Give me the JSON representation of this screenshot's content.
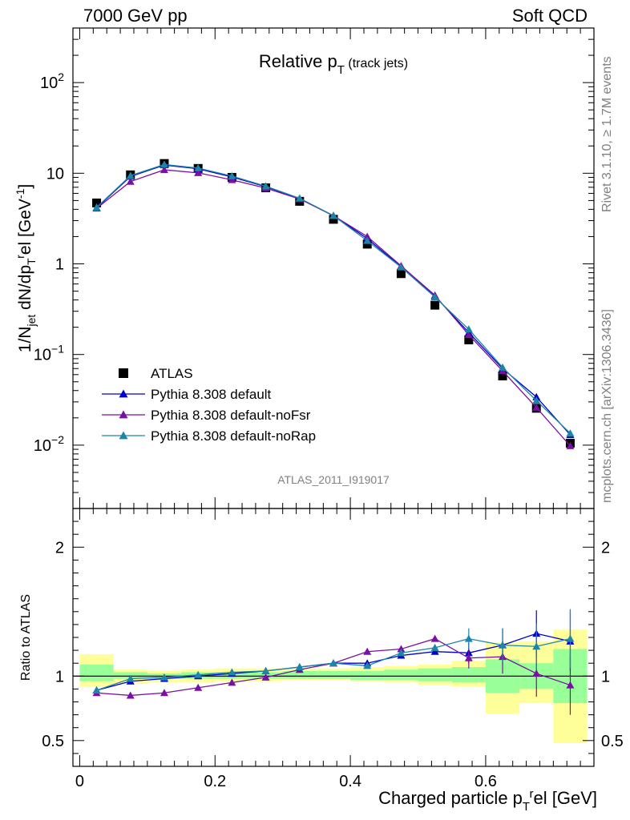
{
  "header": {
    "left": "7000 GeV pp",
    "right": "Soft QCD"
  },
  "side": {
    "rivet": "Rivet 3.1.10, ≥ 1.7M events",
    "mcplots": "mcplots.cern.ch [arXiv:1306.3436]"
  },
  "chart_data": [
    {
      "type": "line",
      "title": "Relative p_T (track jets)",
      "ylabel": "1/N_jet dN/dp_T^rel [GeV^-1]",
      "yscale": "log",
      "ylim": [
        0.002,
        400
      ],
      "xlim": [
        -0.01,
        0.76
      ],
      "yticklabels": [
        "10^-2",
        "10^-1",
        "1",
        "10",
        "10^2"
      ],
      "ref_label": "ATLAS_2011_I919017",
      "legend_position": "bottom-left",
      "x": [
        0.025,
        0.075,
        0.125,
        0.175,
        0.225,
        0.275,
        0.325,
        0.375,
        0.425,
        0.475,
        0.525,
        0.575,
        0.625,
        0.675,
        0.725
      ],
      "series": [
        {
          "name": "ATLAS",
          "color": "#000000",
          "marker": "square",
          "values": [
            4.7,
            9.6,
            12.8,
            11.3,
            9.0,
            6.9,
            4.9,
            3.1,
            1.65,
            0.78,
            0.35,
            0.145,
            0.058,
            0.0255,
            0.0105
          ]
        },
        {
          "name": "Pythia 8.308 default",
          "color": "#0000cc",
          "marker": "triangle",
          "values": [
            4.15,
            9.2,
            12.3,
            11.2,
            9.1,
            7.1,
            5.25,
            3.4,
            1.9,
            0.93,
            0.44,
            0.175,
            0.07,
            0.034,
            0.013
          ]
        },
        {
          "name": "Pythia 8.308 default-noFsr",
          "color": "#7a0fa3",
          "marker": "triangle",
          "values": [
            4.1,
            8.1,
            10.9,
            10.1,
            8.45,
            6.85,
            5.2,
            3.4,
            2.0,
            0.95,
            0.45,
            0.165,
            0.066,
            0.026,
            0.0098
          ]
        },
        {
          "name": "Pythia 8.308 default-noRap",
          "color": "#1c86a8",
          "marker": "triangle",
          "values": [
            4.2,
            9.4,
            12.5,
            11.4,
            9.3,
            7.2,
            5.3,
            3.4,
            1.8,
            0.92,
            0.43,
            0.19,
            0.072,
            0.031,
            0.0135
          ]
        }
      ]
    },
    {
      "type": "line",
      "ylabel": "Ratio to ATLAS",
      "xlabel": "Charged particle p_T^rel [GeV]",
      "ylim": [
        0.3,
        2.3
      ],
      "xlim": [
        -0.01,
        0.76
      ],
      "xticklabels": [
        "0",
        "0.2",
        "0.4",
        "0.6"
      ],
      "yticklabels": [
        "0.5",
        "1",
        "2"
      ],
      "bands": {
        "yellow_edges": [
          [
            0.0,
            0.05
          ],
          [
            0.05,
            0.1
          ],
          [
            0.1,
            0.15
          ],
          [
            0.15,
            0.2
          ],
          [
            0.2,
            0.25
          ],
          [
            0.25,
            0.3
          ],
          [
            0.3,
            0.35
          ],
          [
            0.35,
            0.4
          ],
          [
            0.4,
            0.45
          ],
          [
            0.45,
            0.5
          ],
          [
            0.5,
            0.55
          ],
          [
            0.55,
            0.6
          ],
          [
            0.6,
            0.65
          ],
          [
            0.65,
            0.7
          ],
          [
            0.7,
            0.75
          ]
        ],
        "yellow_lo": [
          0.92,
          0.94,
          0.95,
          0.95,
          0.96,
          0.96,
          0.97,
          0.97,
          0.96,
          0.95,
          0.93,
          0.92,
          0.71,
          0.79,
          0.48
        ],
        "yellow_hi": [
          1.17,
          1.05,
          1.04,
          1.05,
          1.06,
          1.06,
          1.06,
          1.06,
          1.07,
          1.08,
          1.09,
          1.12,
          1.26,
          1.27,
          1.36
        ],
        "green_lo": [
          0.96,
          0.98,
          0.98,
          0.98,
          0.98,
          0.98,
          0.98,
          0.98,
          0.97,
          0.97,
          0.96,
          0.95,
          0.87,
          0.9,
          0.79
        ],
        "green_hi": [
          1.09,
          1.03,
          1.02,
          1.03,
          1.03,
          1.03,
          1.04,
          1.04,
          1.04,
          1.05,
          1.06,
          1.07,
          1.13,
          1.1,
          1.21
        ]
      },
      "x": [
        0.025,
        0.075,
        0.125,
        0.175,
        0.225,
        0.275,
        0.325,
        0.375,
        0.425,
        0.475,
        0.525,
        0.575,
        0.625,
        0.675,
        0.725
      ],
      "series": [
        {
          "name": "Pythia 8.308 default",
          "color": "#0000cc",
          "values": [
            0.89,
            0.96,
            0.98,
            1.0,
            1.02,
            1.04,
            1.07,
            1.1,
            1.1,
            1.16,
            1.19,
            1.18,
            1.24,
            1.33,
            1.27
          ]
        },
        {
          "name": "Pythia 8.308 default-noFsr",
          "color": "#7a0fa3",
          "values": [
            0.87,
            0.85,
            0.87,
            0.91,
            0.95,
            0.99,
            1.05,
            1.1,
            1.19,
            1.21,
            1.29,
            1.14,
            1.15,
            1.02,
            0.93
          ]
        },
        {
          "name": "Pythia 8.308 default-noRap",
          "color": "#1c86a8",
          "values": [
            0.89,
            0.98,
            0.99,
            1.01,
            1.03,
            1.04,
            1.07,
            1.1,
            1.08,
            1.18,
            1.22,
            1.29,
            1.24,
            1.23,
            1.29
          ]
        }
      ]
    }
  ]
}
